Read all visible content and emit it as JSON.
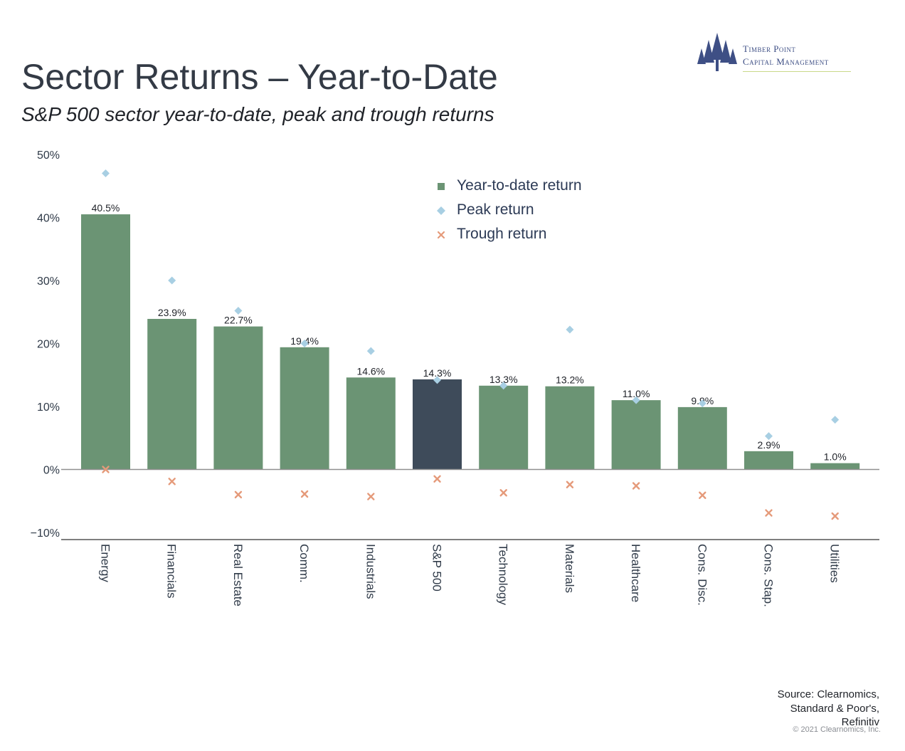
{
  "header": {
    "title": "Sector Returns – Year-to-Date",
    "subtitle": "S&P 500 sector year-to-date, peak and trough returns"
  },
  "logo": {
    "line1": "Timber Point",
    "line2": "Capital Management"
  },
  "colors": {
    "bar": "#6b9474",
    "highlight_bar": "#3e4b5a",
    "peak": "#a8cfe3",
    "trough": "#e59a7a",
    "logo": "#3e4f85"
  },
  "legend": {
    "items": [
      {
        "label": "Year-to-date return",
        "marker": "square"
      },
      {
        "label": "Peak return",
        "marker": "diamond"
      },
      {
        "label": "Trough return",
        "marker": "x"
      }
    ]
  },
  "chart_data": {
    "type": "bar",
    "title": "Sector Returns – Year-to-Date",
    "subtitle": "S&P 500 sector year-to-date, peak and trough returns",
    "categories": [
      "Energy",
      "Financials",
      "Real Estate",
      "Comm.",
      "Industrials",
      "S&P 500",
      "Technology",
      "Materials",
      "Healthcare",
      "Cons. Disc.",
      "Cons. Stap.",
      "Utilities"
    ],
    "series": [
      {
        "name": "Year-to-date return",
        "values": [
          40.5,
          23.9,
          22.7,
          19.4,
          14.6,
          14.3,
          13.3,
          13.2,
          11.0,
          9.9,
          2.9,
          1.0
        ]
      },
      {
        "name": "Peak return",
        "values": [
          47.0,
          30.0,
          25.2,
          20.0,
          18.8,
          14.2,
          13.3,
          22.2,
          11.0,
          10.5,
          5.3,
          7.9
        ]
      },
      {
        "name": "Trough return",
        "values": [
          0.0,
          -1.9,
          -4.0,
          -3.9,
          -4.3,
          -1.5,
          -3.7,
          -2.4,
          -2.6,
          -4.1,
          -6.9,
          -7.4
        ]
      }
    ],
    "data_labels": [
      "40.5%",
      "23.9%",
      "22.7%",
      "19.4%",
      "14.6%",
      "14.3%",
      "13.3%",
      "13.2%",
      "11.0%",
      "9.9%",
      "2.9%",
      "1.0%"
    ],
    "highlight_category": "S&P 500",
    "ylim": [
      -10,
      50
    ],
    "yticks": [
      -10,
      0,
      10,
      20,
      30,
      40,
      50
    ],
    "ytick_labels": [
      "−10%",
      "0%",
      "10%",
      "20%",
      "30%",
      "40%",
      "50%"
    ],
    "xlabel": "",
    "ylabel": "",
    "grid": false,
    "legend_position": "top-right"
  },
  "footer": {
    "source_lines": [
      "Source: Clearnomics,",
      "Standard & Poor's,",
      "Refinitiv"
    ],
    "copyright": "© 2021 Clearnomics, Inc."
  }
}
